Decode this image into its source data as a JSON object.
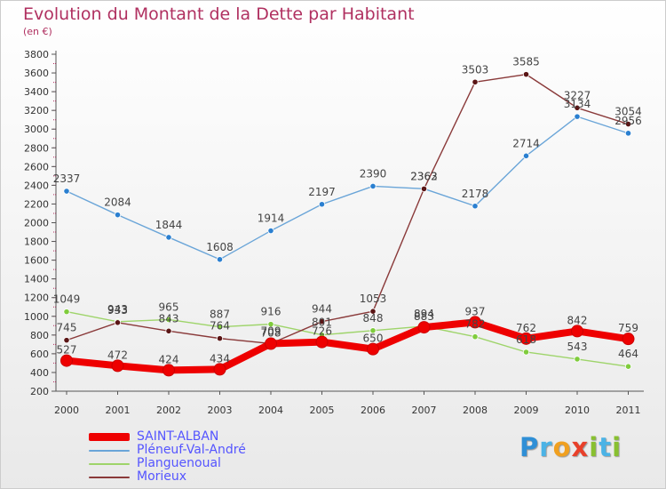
{
  "title": "Evolution du Montant de la Dette par Habitant",
  "subtitle": "(en €)",
  "logo": {
    "letters": [
      {
        "ch": "P",
        "color": "#2f8fd6"
      },
      {
        "ch": "r",
        "color": "#4bb3e6"
      },
      {
        "ch": "o",
        "color": "#f0a020"
      },
      {
        "ch": "x",
        "color": "#e8402a"
      },
      {
        "ch": "i",
        "color": "#88c030"
      },
      {
        "ch": "t",
        "color": "#4bb3e6"
      },
      {
        "ch": "i",
        "color": "#88c030"
      }
    ]
  },
  "chart_data": {
    "type": "line",
    "title": "Evolution du Montant de la Dette par Habitant",
    "ylabel": "(en €)",
    "x": [
      "2000",
      "2001",
      "2002",
      "2003",
      "2004",
      "2005",
      "2006",
      "2007",
      "2008",
      "2009",
      "2010",
      "2011"
    ],
    "ylim": [
      200,
      3800
    ],
    "yticks": [
      200,
      400,
      600,
      800,
      1000,
      1200,
      1400,
      1600,
      1800,
      2000,
      2200,
      2400,
      2600,
      2800,
      3000,
      3200,
      3400,
      3600,
      3800
    ],
    "grid": false,
    "legend_position": "bottom-left",
    "series": [
      {
        "name": "SAINT-ALBAN",
        "color": "#ee0000",
        "marker": "#ee0000",
        "values": [
          527,
          472,
          424,
          434,
          708,
          726,
          650,
          883,
          937,
          762,
          842,
          759
        ]
      },
      {
        "name": "Pléneuf-Val-André",
        "color": "#6aa5d8",
        "marker": "#2a7fd0",
        "values": [
          2337,
          2084,
          1844,
          1608,
          1914,
          2197,
          2390,
          2363,
          2178,
          2714,
          3134,
          2956
        ]
      },
      {
        "name": "Planguenoual",
        "color": "#9ed46a",
        "marker": "#7fcc3c",
        "values": [
          1049,
          943,
          965,
          887,
          916,
          801,
          848,
          894,
          782,
          618,
          543,
          464
        ]
      },
      {
        "name": "Morieux",
        "color": "#8a3a3a",
        "marker": "#5a1515",
        "values": [
          745,
          933,
          843,
          764,
          709,
          944,
          1053,
          2362,
          3503,
          3585,
          3227,
          3054
        ]
      }
    ],
    "labels": [
      {
        "series": 0,
        "text": [
          "527",
          "472",
          "424",
          "434",
          "708",
          "726",
          "650",
          "883",
          "937",
          "762",
          "842",
          "759"
        ]
      },
      {
        "series": 1,
        "text": [
          "2337",
          "2084",
          "1844",
          "1608",
          "1914",
          "2197",
          "2390",
          "2363",
          "2178",
          "2714",
          "3134",
          "2956"
        ]
      },
      {
        "series": 2,
        "text": [
          "1049",
          "943",
          "965",
          "887",
          "916",
          "801",
          "848",
          "894",
          "782",
          "618",
          "543",
          "464"
        ]
      },
      {
        "series": 3,
        "text": [
          "745",
          "933",
          "843",
          "764",
          "709",
          "944",
          "1053",
          "2362",
          "3503",
          "3585",
          "3227",
          "3054"
        ]
      }
    ]
  }
}
